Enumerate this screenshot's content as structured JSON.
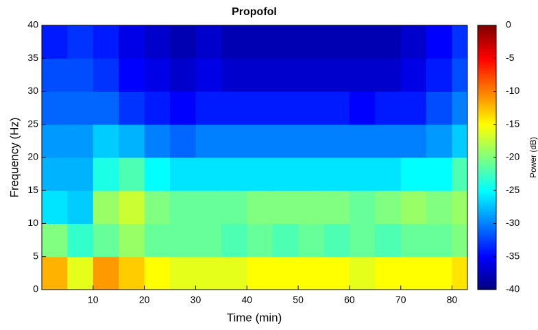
{
  "chart_data": {
    "type": "heatmap",
    "title": "Propofol",
    "xlabel": "Time (min)",
    "ylabel": "Frequency (Hz)",
    "colorbar_label": "Power (dB)",
    "colormap": "jet",
    "x_edges": [
      0,
      5,
      10,
      15,
      20,
      25,
      30,
      35,
      40,
      45,
      50,
      55,
      60,
      65,
      70,
      75,
      80,
      83
    ],
    "y_edges": [
      0,
      5,
      10,
      15,
      20,
      25,
      30,
      35,
      40
    ],
    "values": [
      [
        -12,
        -16,
        -11,
        -13,
        -15,
        -16,
        -16,
        -16,
        -15,
        -15,
        -15,
        -15,
        -16,
        -15,
        -15,
        -15,
        -14
      ],
      [
        -20,
        -23,
        -21,
        -19,
        -21,
        -21,
        -21,
        -22,
        -21,
        -22,
        -21,
        -22,
        -21,
        -22,
        -21,
        -21,
        -20
      ],
      [
        -26,
        -27,
        -19,
        -17,
        -20,
        -21,
        -21,
        -21,
        -20,
        -20,
        -20,
        -20,
        -21,
        -20,
        -19,
        -20,
        -19
      ],
      [
        -28,
        -28,
        -24,
        -22,
        -25,
        -26,
        -26,
        -26,
        -26,
        -26,
        -26,
        -26,
        -26,
        -26,
        -25,
        -25,
        -22
      ],
      [
        -29,
        -29,
        -27,
        -28,
        -30,
        -31,
        -30,
        -30,
        -30,
        -30,
        -30,
        -30,
        -30,
        -30,
        -30,
        -29,
        -27
      ],
      [
        -31,
        -31,
        -31,
        -33,
        -34,
        -35,
        -34,
        -34,
        -34,
        -34,
        -34,
        -34,
        -35,
        -34,
        -34,
        -32,
        -30
      ],
      [
        -32,
        -32,
        -33,
        -35,
        -36,
        -37,
        -36,
        -37,
        -37,
        -37,
        -37,
        -37,
        -37,
        -37,
        -36,
        -34,
        -32
      ],
      [
        -34,
        -33,
        -34,
        -36,
        -37,
        -38,
        -37,
        -38,
        -38,
        -38,
        -38,
        -38,
        -38,
        -38,
        -37,
        -35,
        -33
      ]
    ],
    "xlim": [
      0,
      83
    ],
    "xticks": [
      10,
      20,
      30,
      40,
      50,
      60,
      70,
      80
    ],
    "ylim": [
      0,
      40
    ],
    "yticks": [
      0,
      5,
      10,
      15,
      20,
      25,
      30,
      35,
      40
    ],
    "clim": [
      -40,
      0
    ],
    "cticks": [
      -40,
      -35,
      -30,
      -25,
      -20,
      -15,
      -10,
      -5,
      0
    ]
  }
}
